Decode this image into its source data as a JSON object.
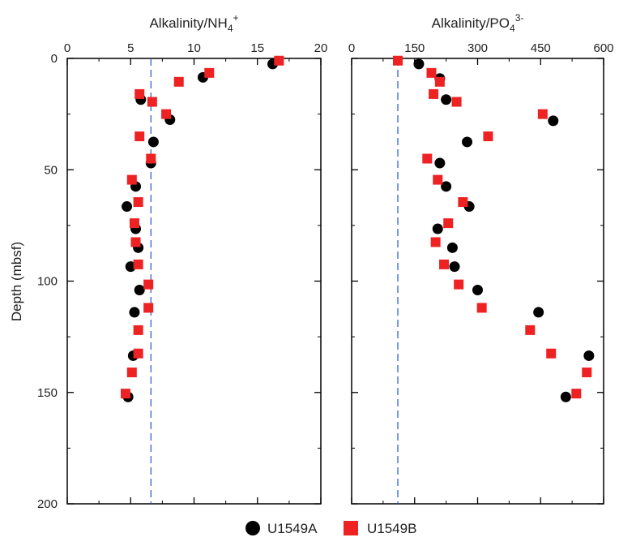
{
  "y_axis": {
    "label": "Depth (mbsf)",
    "ticks": [
      "0",
      "50",
      "100",
      "150",
      "200"
    ]
  },
  "legend": [
    {
      "name": "U1549A",
      "marker": "circle",
      "color": "#000000"
    },
    {
      "name": "U1549B",
      "marker": "square",
      "color": "#ee2222"
    }
  ],
  "colors": {
    "reference_line": "#2255cc",
    "axis": "#000000"
  },
  "chart_data": [
    {
      "type": "scatter",
      "title_main": "Alkalinity/NH",
      "title_sub": "4",
      "title_sup": "+",
      "xlim": [
        0,
        20
      ],
      "ylim": [
        0,
        200
      ],
      "y_inverted": true,
      "xticks": [
        "0",
        "5",
        "10",
        "15",
        "20"
      ],
      "reference_x": 6.6,
      "series": [
        {
          "name": "U1549A",
          "marker": "circle",
          "color": "#000000",
          "x": [
            16.2,
            10.7,
            5.8,
            8.1,
            6.8,
            6.6,
            5.4,
            4.7,
            5.4,
            5.6,
            5.0,
            5.7,
            5.3,
            5.2,
            4.8
          ],
          "y": [
            2.5,
            8.5,
            18.5,
            27.5,
            37.5,
            47,
            57.5,
            66.5,
            76.5,
            85,
            93.5,
            104,
            114,
            133.5,
            152
          ]
        },
        {
          "name": "U1549B",
          "marker": "square",
          "color": "#ee2222",
          "x": [
            16.7,
            11.2,
            8.8,
            5.7,
            6.7,
            7.8,
            5.7,
            6.6,
            5.1,
            5.6,
            5.3,
            5.4,
            5.6,
            6.4,
            6.4,
            5.6,
            5.6,
            5.1,
            4.6
          ],
          "y": [
            1,
            6.5,
            10.5,
            16,
            19.5,
            25,
            35,
            45,
            54.5,
            64.5,
            74,
            82.5,
            92.5,
            101.5,
            112,
            122,
            132.5,
            141,
            150.5
          ]
        }
      ]
    },
    {
      "type": "scatter",
      "title_main": "Alkalinity/PO",
      "title_sub": "4",
      "title_sup": "3-",
      "xlim": [
        0,
        600
      ],
      "ylim": [
        0,
        200
      ],
      "y_inverted": true,
      "xticks": [
        "0",
        "150",
        "300",
        "450",
        "600"
      ],
      "reference_x": 110,
      "series": [
        {
          "name": "U1549A",
          "marker": "circle",
          "color": "#000000",
          "x": [
            160,
            210,
            225,
            480,
            275,
            210,
            225,
            280,
            205,
            240,
            245,
            300,
            445,
            565,
            510
          ],
          "y": [
            2.5,
            9,
            18.5,
            28,
            37.5,
            47,
            57.5,
            66.5,
            76.5,
            85,
            93.5,
            104,
            114,
            133.5,
            152
          ]
        },
        {
          "name": "U1549B",
          "marker": "square",
          "color": "#ee2222",
          "x": [
            110,
            190,
            210,
            195,
            250,
            455,
            325,
            180,
            205,
            265,
            230,
            200,
            220,
            255,
            310,
            425,
            475,
            560,
            535
          ],
          "y": [
            1,
            6.5,
            10.5,
            16,
            19.5,
            25,
            35,
            45,
            54.5,
            64.5,
            74,
            82.5,
            92.5,
            101.5,
            112,
            122,
            132.5,
            141,
            150.5
          ]
        }
      ]
    }
  ]
}
